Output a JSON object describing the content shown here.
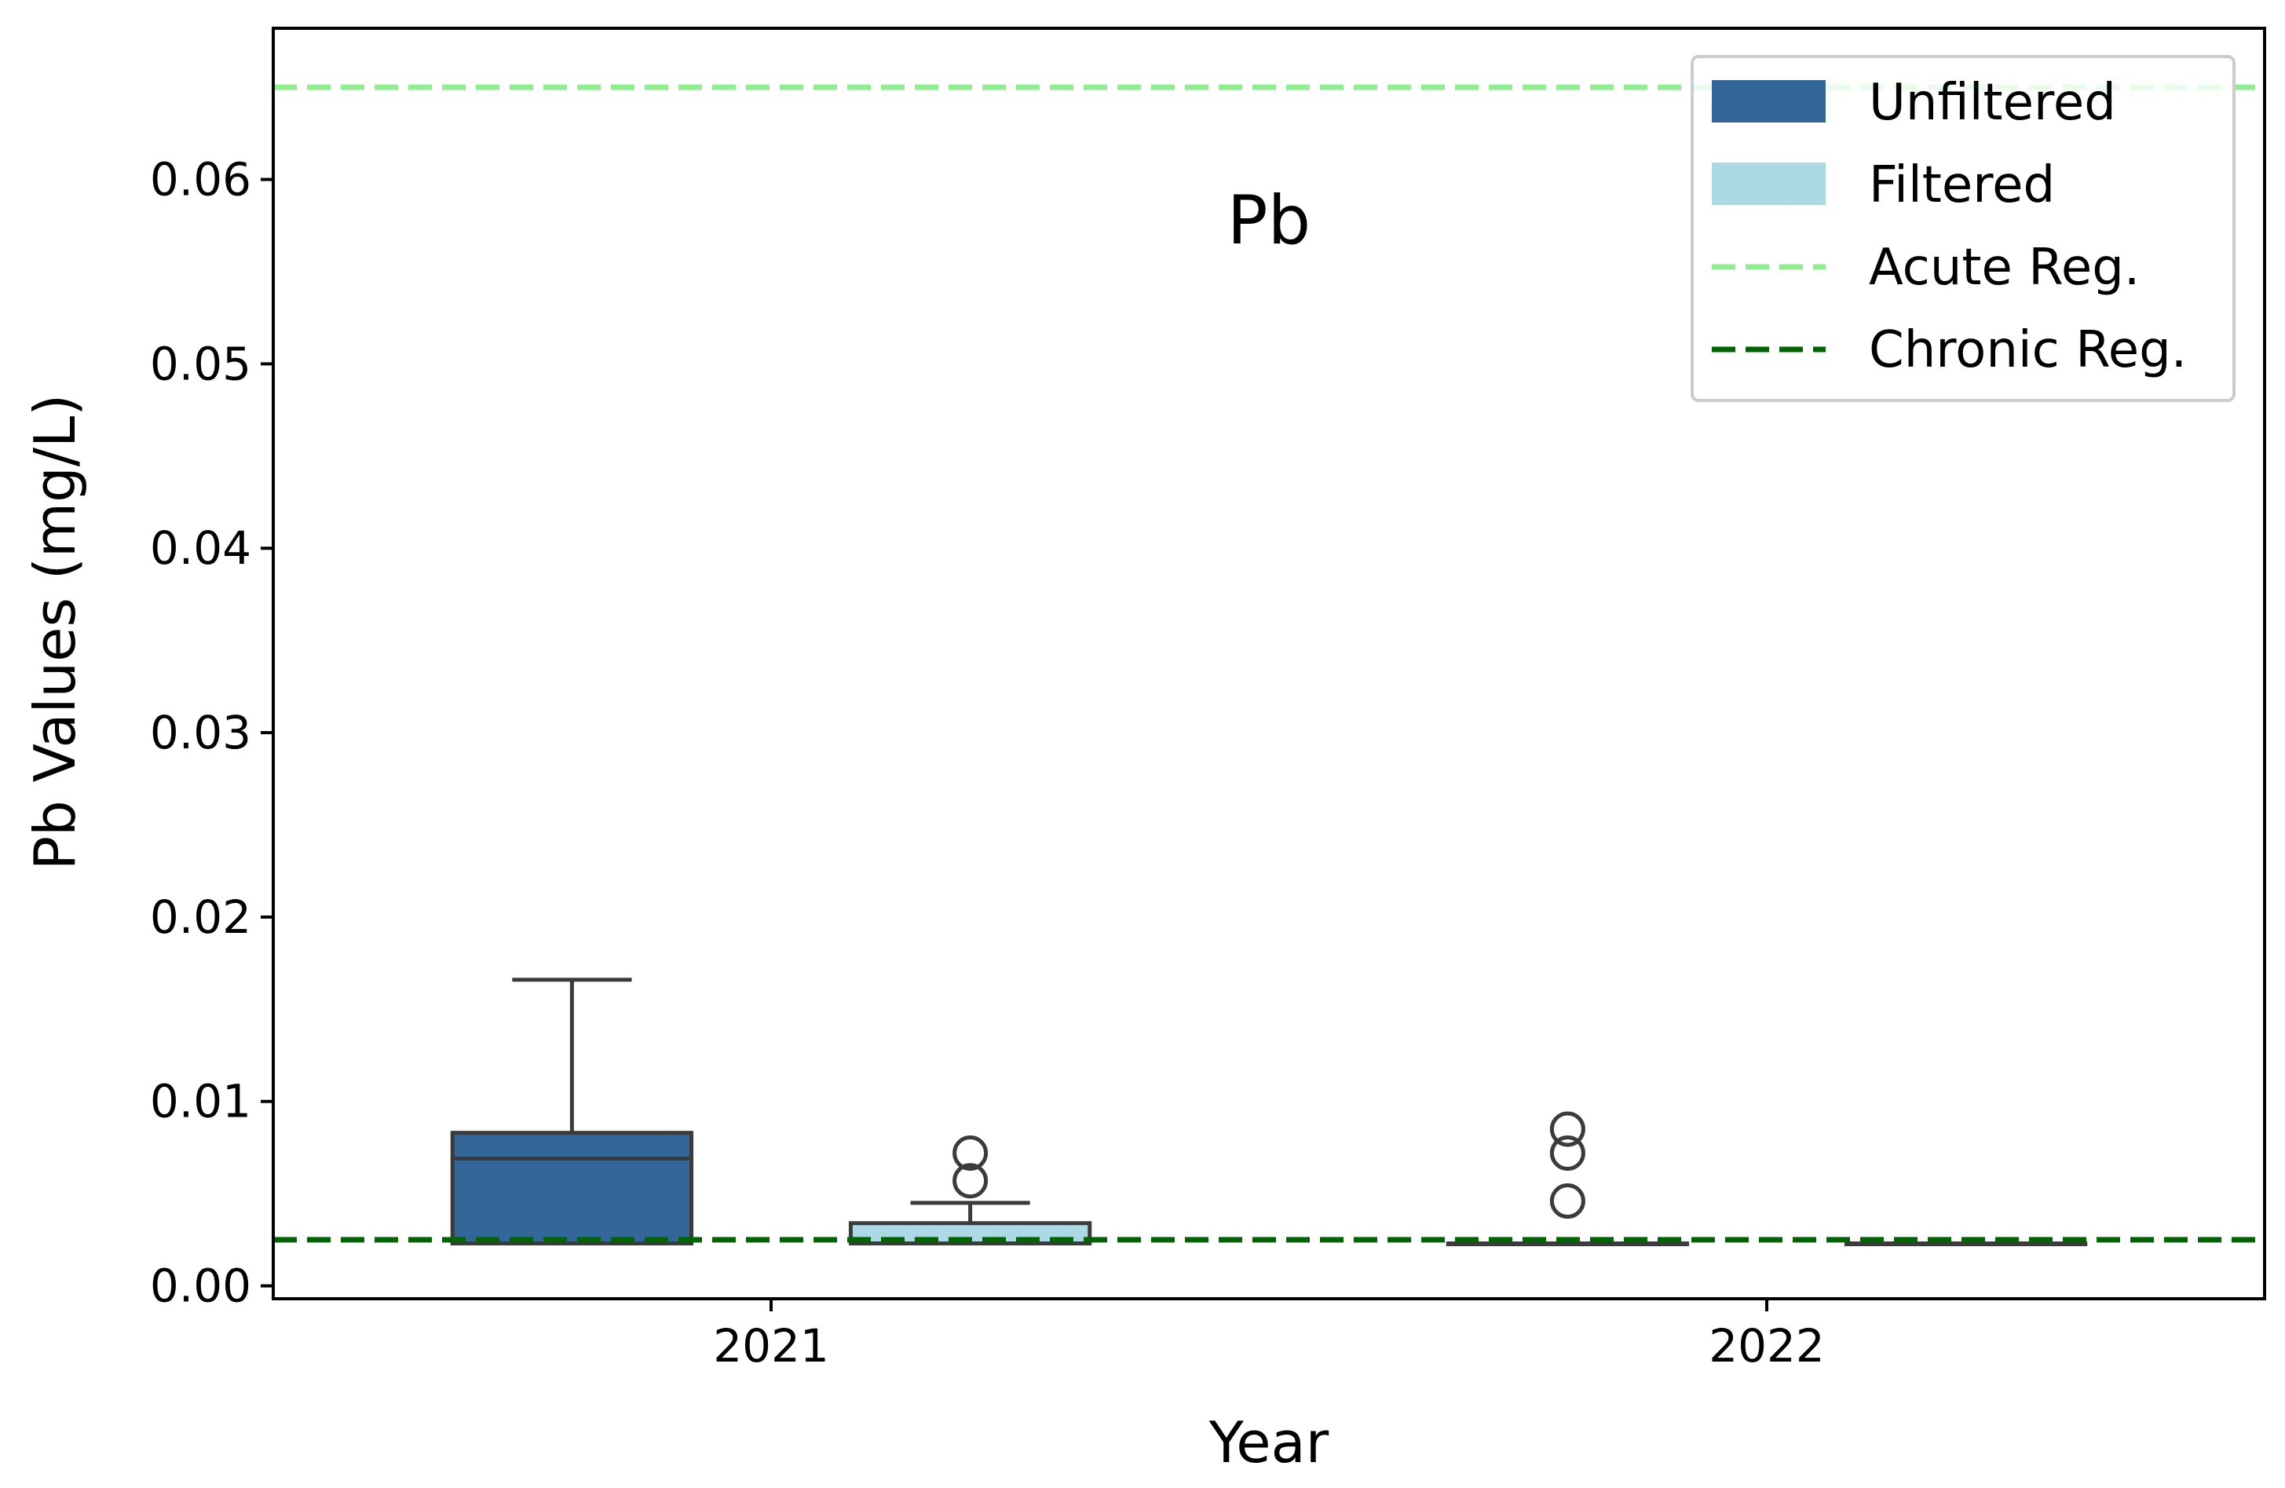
{
  "chart_data": {
    "type": "box",
    "title": "Pb",
    "xlabel": "Year",
    "ylabel": "Pb Values (mg/L)",
    "categories": [
      "2021",
      "2022"
    ],
    "ylim": [
      -0.0007,
      0.0682
    ],
    "yticks": [
      0.0,
      0.01,
      0.02,
      0.03,
      0.04,
      0.05,
      0.06
    ],
    "ytick_labels": [
      "0.00",
      "0.01",
      "0.02",
      "0.03",
      "0.04",
      "0.05",
      "0.06"
    ],
    "grid": false,
    "legend_position": "upper right",
    "series": [
      {
        "name": "Unfiltered",
        "color": "#336699",
        "boxes": [
          {
            "category": "2021",
            "whisker_low": 0.0023,
            "q1": 0.0023,
            "median": 0.0069,
            "q3": 0.0083,
            "whisker_high": 0.0166,
            "outliers": []
          },
          {
            "category": "2022",
            "whisker_low": 0.0023,
            "q1": 0.0023,
            "median": 0.0023,
            "q3": 0.0023,
            "whisker_high": 0.0023,
            "outliers": [
              0.0046,
              0.0072,
              0.0085
            ]
          }
        ]
      },
      {
        "name": "Filtered",
        "color": "#add8e6",
        "boxes": [
          {
            "category": "2021",
            "whisker_low": 0.0023,
            "q1": 0.0023,
            "median": 0.0023,
            "q3": 0.0034,
            "whisker_high": 0.0045,
            "outliers": [
              0.0057,
              0.0072
            ]
          },
          {
            "category": "2022",
            "whisker_low": 0.0023,
            "q1": 0.0023,
            "median": 0.0023,
            "q3": 0.0023,
            "whisker_high": 0.0023,
            "outliers": []
          }
        ]
      }
    ],
    "reference_lines": [
      {
        "name": "Acute Reg.",
        "value": 0.065,
        "color": "#90ee90",
        "style": "dashed"
      },
      {
        "name": "Chronic Reg.",
        "value": 0.0025,
        "color": "#006400",
        "style": "dashed"
      }
    ],
    "legend": [
      {
        "label": "Unfiltered",
        "kind": "patch",
        "color": "#336699"
      },
      {
        "label": "Filtered",
        "kind": "patch",
        "color": "#add8e6"
      },
      {
        "label": "Acute Reg.",
        "kind": "line",
        "color": "#90ee90"
      },
      {
        "label": "Chronic Reg.",
        "kind": "line",
        "color": "#006400"
      }
    ]
  }
}
